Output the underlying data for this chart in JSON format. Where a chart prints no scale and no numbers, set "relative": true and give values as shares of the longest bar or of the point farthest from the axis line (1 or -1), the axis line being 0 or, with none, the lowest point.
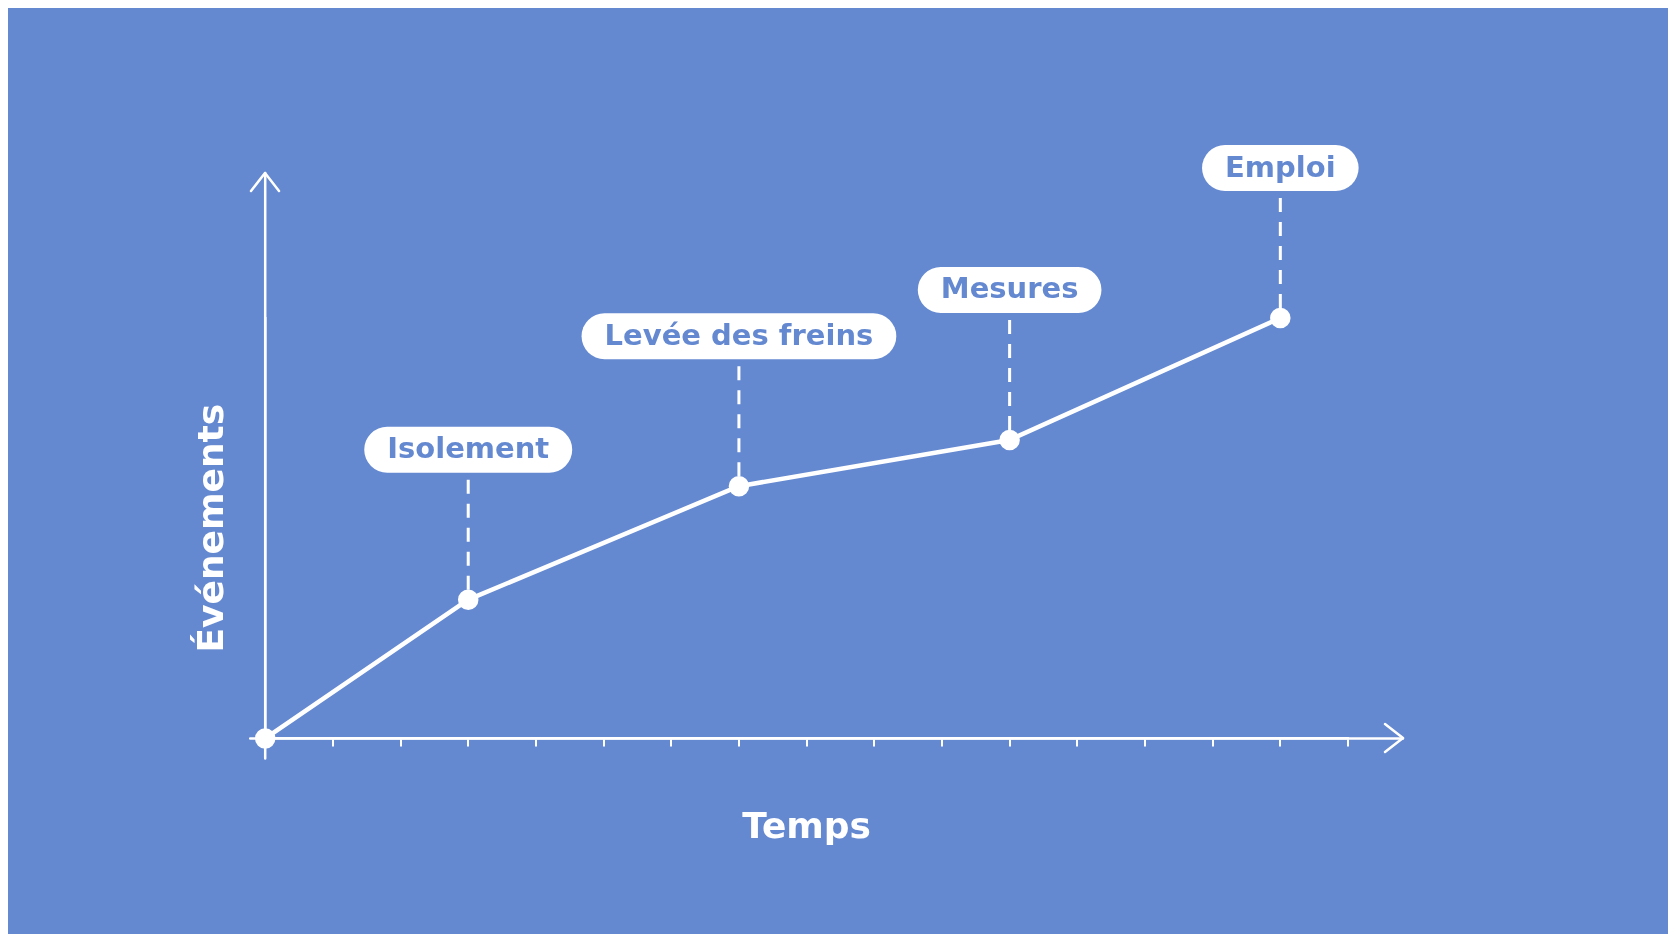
{
  "chart_data": {
    "type": "line",
    "xlabel": "Temps",
    "ylabel": "Événements",
    "relative": true,
    "categories": [
      null,
      null,
      null,
      null,
      null,
      null,
      null,
      null,
      null,
      null,
      null,
      null,
      null,
      null,
      null,
      null,
      null
    ],
    "series": [
      {
        "color": "#ffffff",
        "values": [
          0,
          null,
          null,
          0.33,
          null,
          null,
          null,
          0.6,
          null,
          null,
          null,
          0.71,
          null,
          null,
          null,
          1,
          null
        ]
      }
    ],
    "annotations": [
      "Isolement",
      "Levée des freins",
      "Mesures",
      "Emploi"
    ],
    "marker": "circle",
    "line_style": "solid",
    "grid": false,
    "legend": false
  }
}
